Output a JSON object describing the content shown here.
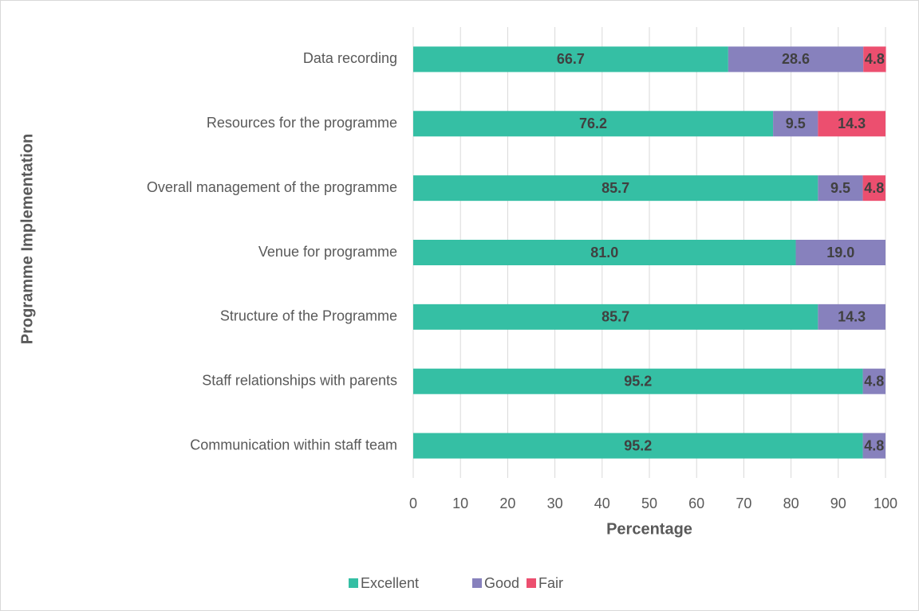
{
  "chart_data": {
    "type": "stacked-bar-horizontal",
    "x_label": "Percentage",
    "y_label": "Programme Implementation",
    "categories": [
      "Data recording",
      "Resources for the programme",
      "Overall management of the programme",
      "Venue for programme",
      "Structure of the Programme ",
      "Staff relationships with parents",
      "Communication within staff team"
    ],
    "series": [
      {
        "name": "Excellent",
        "color": "#35bfa4",
        "values": [
          66.7,
          76.2,
          85.7,
          81.0,
          85.7,
          95.2,
          95.2
        ],
        "value_labels": [
          "66.7",
          "76.2",
          "85.7",
          "81.0",
          "85.7",
          "95.2",
          "95.2"
        ]
      },
      {
        "name": "Good",
        "color": "#8781bd",
        "values": [
          28.6,
          9.5,
          9.5,
          19.0,
          14.3,
          4.8,
          4.8
        ],
        "value_labels": [
          "28.6",
          "9.5",
          "9.5",
          "19.0",
          "14.3",
          "4.8",
          "4.8"
        ]
      },
      {
        "name": "Fair",
        "color": "#ec4f6f",
        "values": [
          4.8,
          14.3,
          4.8,
          null,
          null,
          null,
          null
        ],
        "value_labels": [
          "4.8",
          "14.3",
          "4.8",
          null,
          null,
          null,
          null
        ]
      }
    ],
    "xlim": [
      0,
      100
    ],
    "xticks": [
      0,
      10,
      20,
      30,
      40,
      50,
      60,
      70,
      80,
      90,
      100
    ],
    "grid": true,
    "legend": "bottom"
  }
}
